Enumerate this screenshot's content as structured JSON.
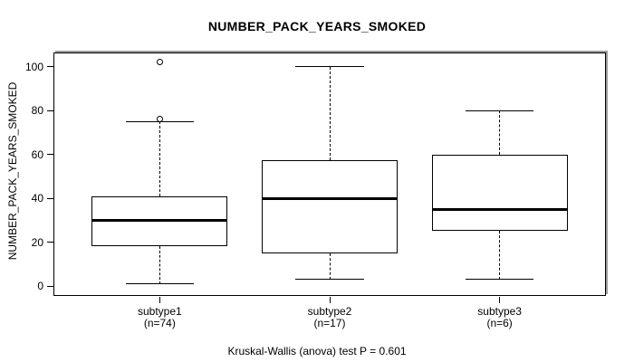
{
  "chart_data": {
    "type": "boxplot",
    "title": "NUMBER_PACK_YEARS_SMOKED",
    "ylabel": "NUMBER_PACK_YEARS_SMOKED",
    "caption": "Kruskal-Wallis (anova) test P = 0.601",
    "y_ticks": [
      0,
      20,
      40,
      60,
      80,
      100
    ],
    "ylim": [
      -4.1,
      106.1
    ],
    "grid": false,
    "legend": "none",
    "groups": [
      {
        "label": "subtype1",
        "sublabel": "(n=74)",
        "n": 74,
        "whisker_low": 1,
        "q1": 18,
        "median": 30,
        "q3": 41,
        "whisker_high": 75,
        "outliers": [
          76,
          102
        ]
      },
      {
        "label": "subtype2",
        "sublabel": "(n=17)",
        "n": 17,
        "whisker_low": 3,
        "q1": 15,
        "median": 40,
        "q3": 57.5,
        "whisker_high": 100,
        "outliers": []
      },
      {
        "label": "subtype3",
        "sublabel": "(n=6)",
        "n": 6,
        "whisker_low": 3,
        "q1": 25,
        "median": 35,
        "q3": 60,
        "whisker_high": 80,
        "outliers": []
      }
    ]
  },
  "colors": {
    "line": "#000000",
    "box_fill": "#ffffff",
    "frame_highlight": "#9c9c9c",
    "background": "#ffffff"
  }
}
